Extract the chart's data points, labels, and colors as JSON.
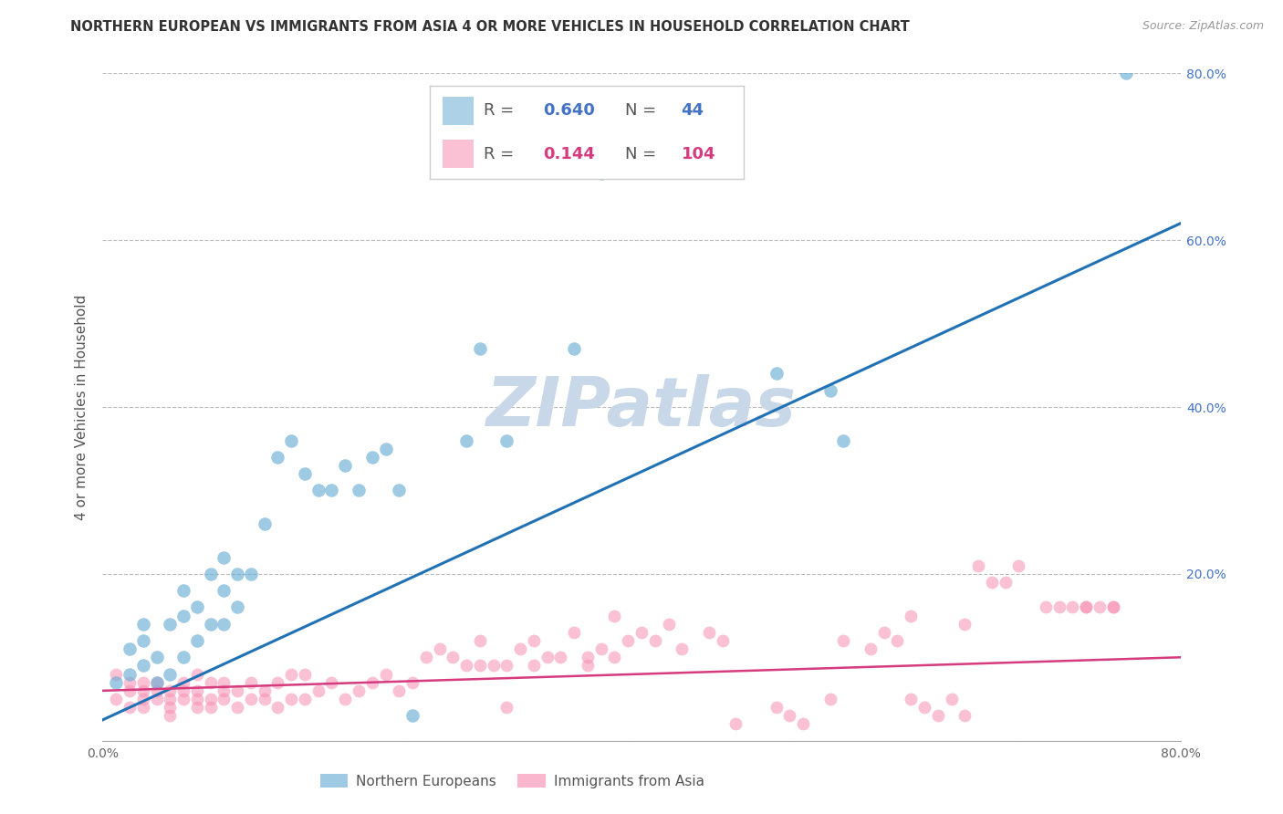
{
  "title": "NORTHERN EUROPEAN VS IMMIGRANTS FROM ASIA 4 OR MORE VEHICLES IN HOUSEHOLD CORRELATION CHART",
  "source": "Source: ZipAtlas.com",
  "ylabel": "4 or more Vehicles in Household",
  "xlim": [
    0.0,
    0.8
  ],
  "ylim": [
    0.0,
    0.8
  ],
  "xticks": [
    0.0,
    0.1,
    0.2,
    0.3,
    0.4,
    0.5,
    0.6,
    0.7,
    0.8
  ],
  "yticks": [
    0.0,
    0.2,
    0.4,
    0.6,
    0.8
  ],
  "xticklabels": [
    "0.0%",
    "",
    "",
    "",
    "",
    "",
    "",
    "",
    "80.0%"
  ],
  "yticklabels_right": [
    "",
    "20.0%",
    "40.0%",
    "60.0%",
    "80.0%"
  ],
  "blue_R": "0.640",
  "blue_N": "44",
  "pink_R": "0.144",
  "pink_N": "104",
  "blue_color": "#6BAED6",
  "pink_color": "#F78FB3",
  "blue_line_color": "#2171B5",
  "pink_line_color": "#D63B7E",
  "watermark": "ZIPatlas",
  "watermark_color": "#C8D8E8",
  "legend_fontsize": 11,
  "grid_color": "#BBBBBB",
  "title_color": "#333333",
  "blue_scatter_x": [
    0.01,
    0.02,
    0.02,
    0.03,
    0.03,
    0.03,
    0.04,
    0.04,
    0.05,
    0.05,
    0.06,
    0.06,
    0.06,
    0.07,
    0.07,
    0.08,
    0.08,
    0.09,
    0.09,
    0.09,
    0.1,
    0.1,
    0.11,
    0.12,
    0.13,
    0.14,
    0.15,
    0.16,
    0.17,
    0.18,
    0.19,
    0.2,
    0.21,
    0.22,
    0.23,
    0.27,
    0.28,
    0.3,
    0.35,
    0.37,
    0.5,
    0.54,
    0.55,
    0.76
  ],
  "blue_scatter_y": [
    0.07,
    0.08,
    0.11,
    0.09,
    0.12,
    0.14,
    0.07,
    0.1,
    0.08,
    0.14,
    0.1,
    0.15,
    0.18,
    0.12,
    0.16,
    0.14,
    0.2,
    0.14,
    0.18,
    0.22,
    0.16,
    0.2,
    0.2,
    0.26,
    0.34,
    0.36,
    0.32,
    0.3,
    0.3,
    0.33,
    0.3,
    0.34,
    0.35,
    0.3,
    0.03,
    0.36,
    0.47,
    0.36,
    0.47,
    0.68,
    0.44,
    0.42,
    0.36,
    0.8
  ],
  "pink_scatter_x": [
    0.01,
    0.01,
    0.02,
    0.02,
    0.02,
    0.03,
    0.03,
    0.03,
    0.03,
    0.04,
    0.04,
    0.04,
    0.05,
    0.05,
    0.05,
    0.05,
    0.06,
    0.06,
    0.06,
    0.07,
    0.07,
    0.07,
    0.07,
    0.08,
    0.08,
    0.08,
    0.09,
    0.09,
    0.09,
    0.1,
    0.1,
    0.11,
    0.11,
    0.12,
    0.12,
    0.13,
    0.13,
    0.14,
    0.14,
    0.15,
    0.15,
    0.16,
    0.17,
    0.18,
    0.19,
    0.2,
    0.21,
    0.22,
    0.23,
    0.24,
    0.25,
    0.26,
    0.27,
    0.28,
    0.29,
    0.3,
    0.31,
    0.32,
    0.33,
    0.35,
    0.36,
    0.37,
    0.38,
    0.39,
    0.4,
    0.41,
    0.42,
    0.43,
    0.45,
    0.46,
    0.47,
    0.5,
    0.51,
    0.52,
    0.54,
    0.55,
    0.57,
    0.58,
    0.59,
    0.6,
    0.61,
    0.62,
    0.63,
    0.64,
    0.65,
    0.66,
    0.67,
    0.68,
    0.7,
    0.71,
    0.72,
    0.73,
    0.74,
    0.75,
    0.6,
    0.64,
    0.73,
    0.75,
    0.28,
    0.3,
    0.32,
    0.34,
    0.36,
    0.38
  ],
  "pink_scatter_y": [
    0.05,
    0.08,
    0.06,
    0.04,
    0.07,
    0.05,
    0.07,
    0.04,
    0.06,
    0.06,
    0.05,
    0.07,
    0.04,
    0.06,
    0.05,
    0.03,
    0.06,
    0.05,
    0.07,
    0.05,
    0.04,
    0.06,
    0.08,
    0.05,
    0.07,
    0.04,
    0.05,
    0.07,
    0.06,
    0.06,
    0.04,
    0.05,
    0.07,
    0.05,
    0.06,
    0.04,
    0.07,
    0.05,
    0.08,
    0.08,
    0.05,
    0.06,
    0.07,
    0.05,
    0.06,
    0.07,
    0.08,
    0.06,
    0.07,
    0.1,
    0.11,
    0.1,
    0.09,
    0.12,
    0.09,
    0.04,
    0.11,
    0.12,
    0.1,
    0.13,
    0.1,
    0.11,
    0.15,
    0.12,
    0.13,
    0.12,
    0.14,
    0.11,
    0.13,
    0.12,
    0.02,
    0.04,
    0.03,
    0.02,
    0.05,
    0.12,
    0.11,
    0.13,
    0.12,
    0.05,
    0.04,
    0.03,
    0.05,
    0.03,
    0.21,
    0.19,
    0.19,
    0.21,
    0.16,
    0.16,
    0.16,
    0.16,
    0.16,
    0.16,
    0.15,
    0.14,
    0.16,
    0.16,
    0.09,
    0.09,
    0.09,
    0.1,
    0.09,
    0.1
  ],
  "blue_line_x": [
    0.0,
    0.8
  ],
  "blue_line_y": [
    0.025,
    0.62
  ],
  "pink_line_x": [
    0.0,
    0.8
  ],
  "pink_line_y": [
    0.06,
    0.1
  ]
}
